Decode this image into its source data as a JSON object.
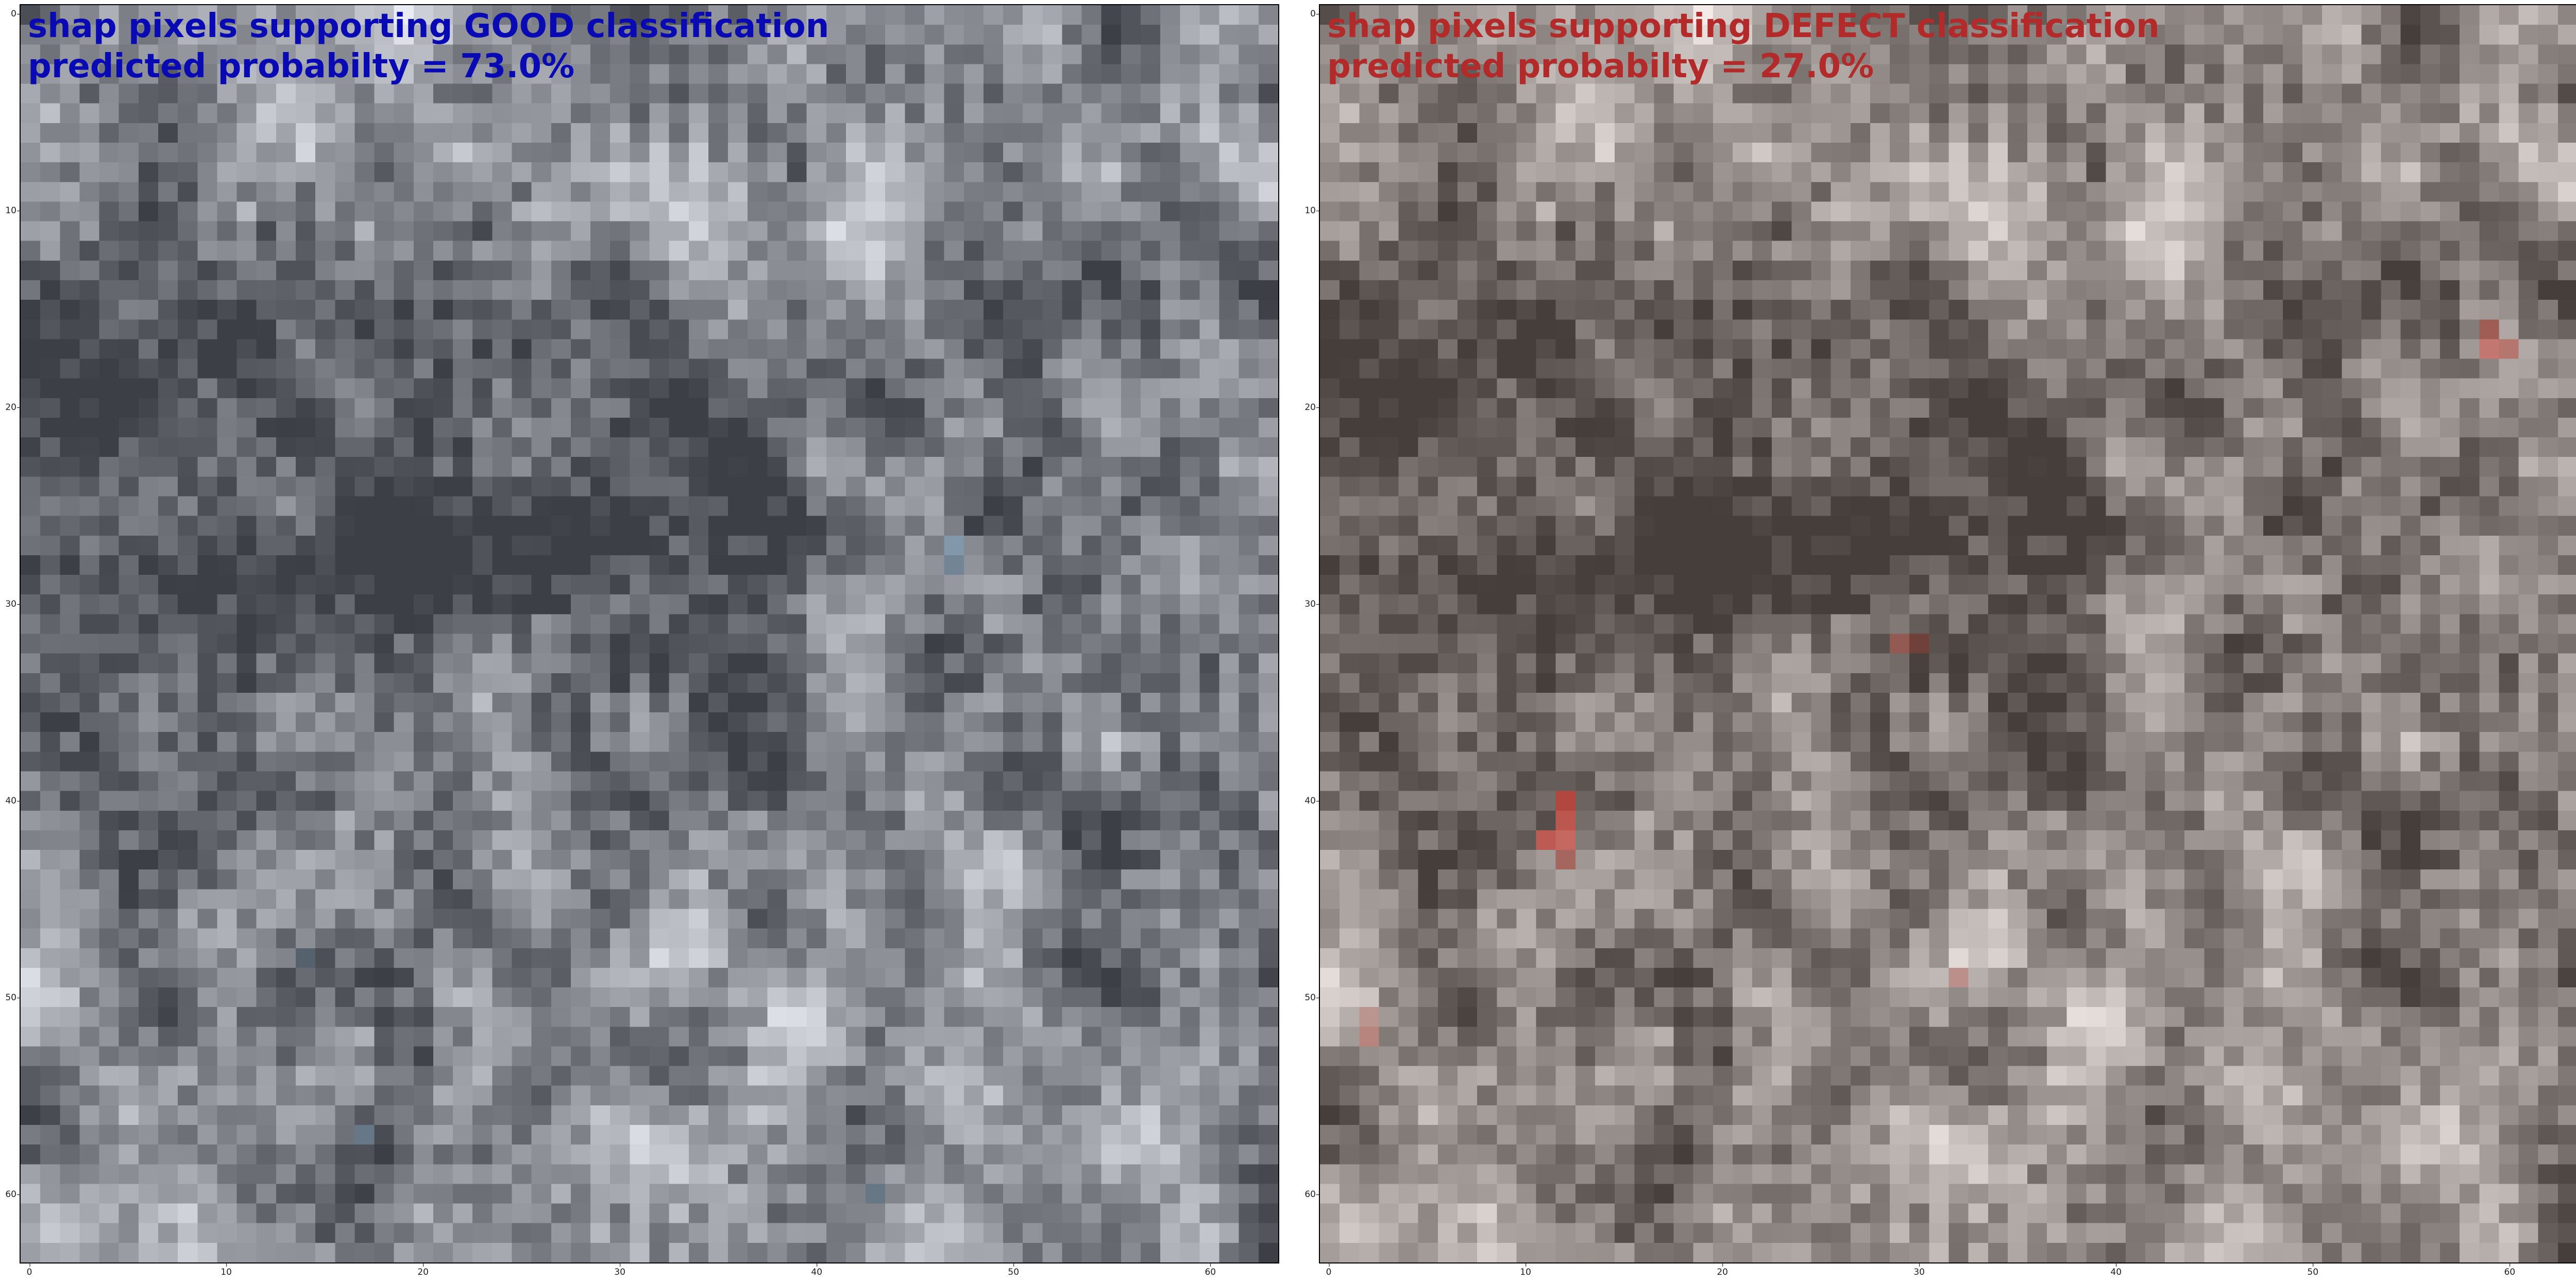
{
  "chart_data": [
    {
      "type": "heatmap",
      "title": "shap pixels supporting GOOD classification",
      "subtitle": "predicted probabilty = 73.0%",
      "title_color": "#0a0ab4",
      "overlay_color": "#7aa6c8",
      "grid": false,
      "x_ticks": [
        0,
        10,
        20,
        30,
        40,
        50,
        60
      ],
      "y_ticks": [
        0,
        10,
        20,
        30,
        40,
        50,
        60
      ],
      "xlim": [
        -0.5,
        63.5
      ],
      "ylim": [
        63.5,
        -0.5
      ],
      "highlights": [
        {
          "x": 47,
          "y": 27,
          "strength": 0.6
        },
        {
          "x": 47,
          "y": 28,
          "strength": 0.5
        },
        {
          "x": 17,
          "y": 57,
          "strength": 0.5
        },
        {
          "x": 43,
          "y": 60,
          "strength": 0.4
        },
        {
          "x": 14,
          "y": 48,
          "strength": 0.3
        }
      ]
    },
    {
      "type": "heatmap",
      "title": "shap pixels supporting DEFECT classification",
      "subtitle": "predicted probabilty = 27.0%",
      "title_color": "#b22a2a",
      "overlay_color": "#d9453a",
      "grid": false,
      "x_ticks": [
        0,
        10,
        20,
        30,
        40,
        50,
        60
      ],
      "y_ticks": [
        0,
        10,
        20,
        30,
        40,
        50,
        60
      ],
      "xlim": [
        -0.5,
        63.5
      ],
      "ylim": [
        63.5,
        -0.5
      ],
      "highlights": [
        {
          "x": 12,
          "y": 40,
          "strength": 1.0
        },
        {
          "x": 12,
          "y": 41,
          "strength": 0.95
        },
        {
          "x": 11,
          "y": 42,
          "strength": 0.9
        },
        {
          "x": 12,
          "y": 42,
          "strength": 0.85
        },
        {
          "x": 12,
          "y": 43,
          "strength": 0.55
        },
        {
          "x": 59,
          "y": 16,
          "strength": 0.6
        },
        {
          "x": 59,
          "y": 17,
          "strength": 0.7
        },
        {
          "x": 60,
          "y": 17,
          "strength": 0.55
        },
        {
          "x": 29,
          "y": 32,
          "strength": 0.5
        },
        {
          "x": 30,
          "y": 32,
          "strength": 0.4
        },
        {
          "x": 32,
          "y": 49,
          "strength": 0.35
        },
        {
          "x": 2,
          "y": 52,
          "strength": 0.45
        },
        {
          "x": 2,
          "y": 51,
          "strength": 0.3
        }
      ]
    }
  ]
}
